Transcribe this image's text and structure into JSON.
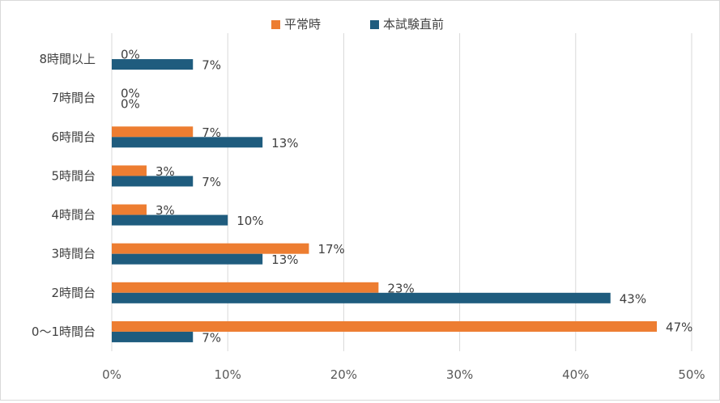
{
  "chart_data": {
    "type": "bar",
    "orientation": "horizontal",
    "categories": [
      "0〜1時間台",
      "2時間台",
      "3時間台",
      "4時間台",
      "5時間台",
      "6時間台",
      "7時間台",
      "8時間以上"
    ],
    "series": [
      {
        "name": "平常時",
        "color": "#ed7d31",
        "values": [
          47,
          23,
          17,
          3,
          3,
          7,
          0,
          0
        ]
      },
      {
        "name": "本試験直前",
        "color": "#1f5c7e",
        "values": [
          7,
          43,
          13,
          10,
          7,
          13,
          0,
          7
        ]
      }
    ],
    "value_format": "{v}%",
    "xlim": [
      0,
      50
    ],
    "xticks": [
      0,
      10,
      20,
      30,
      40,
      50
    ],
    "xtick_labels": [
      "0%",
      "10%",
      "20%",
      "30%",
      "40%",
      "50%"
    ],
    "grid": true,
    "legend_position": "top"
  }
}
